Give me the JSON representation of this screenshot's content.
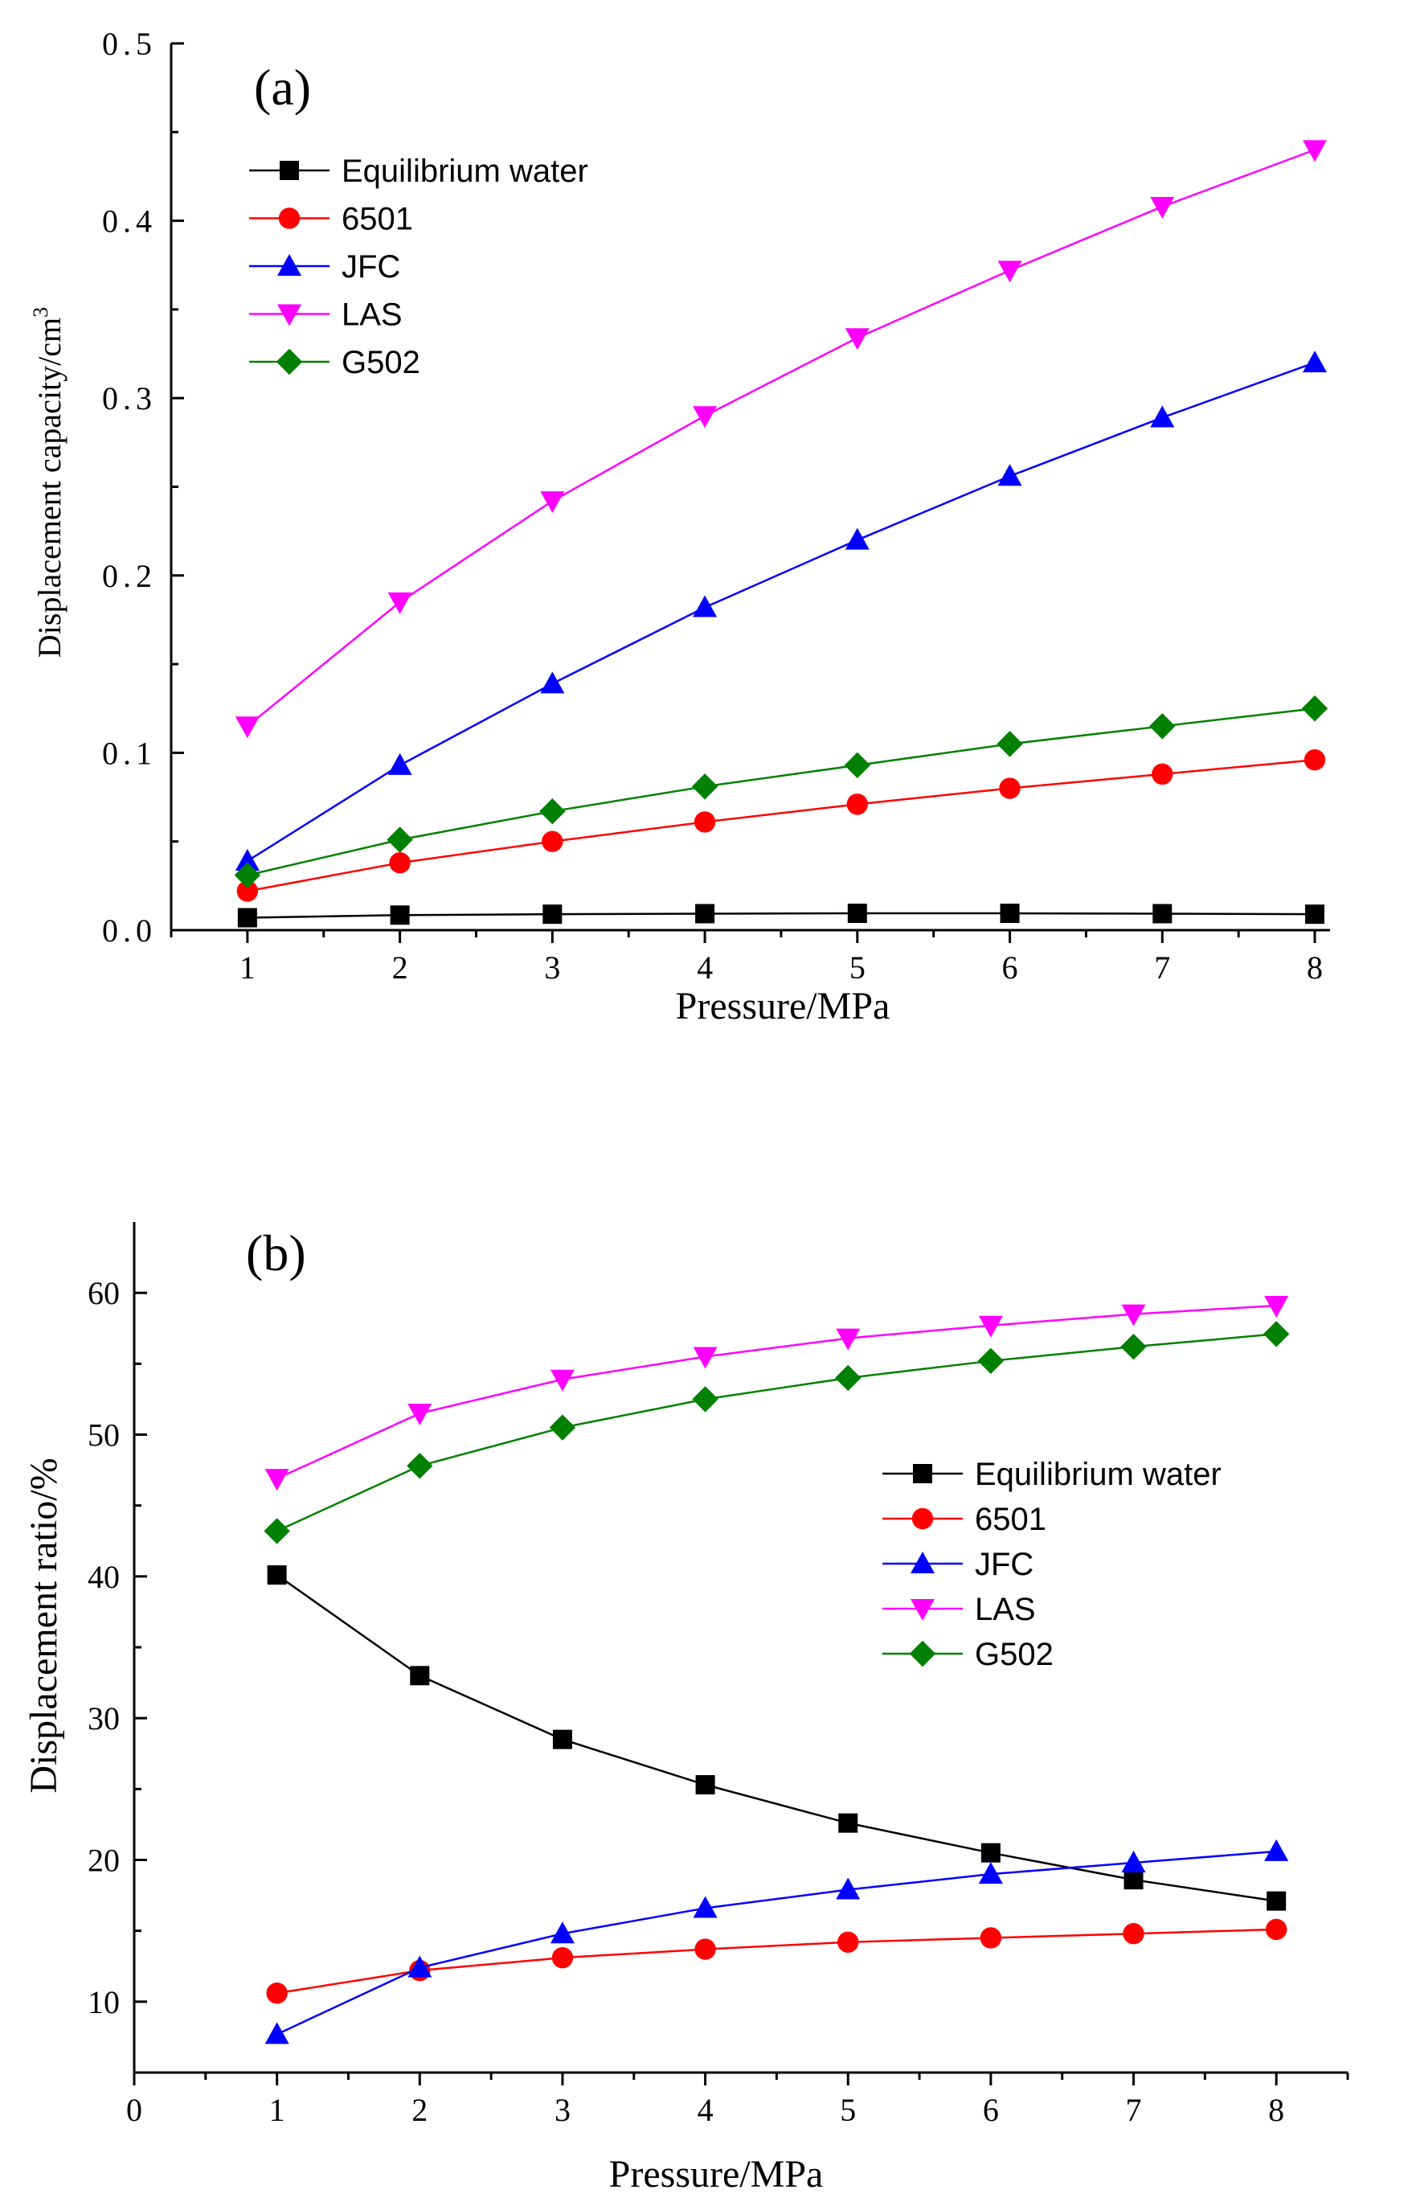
{
  "chart_data": [
    {
      "type": "line",
      "panel_label": "(a)",
      "xlabel": "Pressure/MPa",
      "ylabel": "Displacement capacity/cm",
      "ylabel_sup": "3",
      "xlim": [
        0.5,
        8.1
      ],
      "ylim": [
        0,
        0.5
      ],
      "x_ticks": [
        1,
        2,
        3,
        4,
        5,
        6,
        7,
        8
      ],
      "y_ticks": [
        0.0,
        0.1,
        0.2,
        0.3,
        0.4,
        0.5
      ],
      "y_tick_labels": [
        "0.0",
        "0.1",
        "0.2",
        "0.3",
        "0.4",
        "0.5"
      ],
      "legend_position": "top-left",
      "x": [
        1,
        2,
        3,
        4,
        5,
        6,
        7,
        8
      ],
      "series": [
        {
          "name": "Equilibrium water",
          "color": "#000000",
          "marker": "square",
          "values": [
            0.007,
            0.0085,
            0.009,
            0.0093,
            0.0095,
            0.0095,
            0.0093,
            0.009
          ]
        },
        {
          "name": "6501",
          "color": "#ff0000",
          "marker": "circle",
          "values": [
            0.022,
            0.038,
            0.05,
            0.061,
            0.071,
            0.08,
            0.088,
            0.096
          ]
        },
        {
          "name": "JFC",
          "color": "#0000ff",
          "marker": "triangle-up",
          "values": [
            0.039,
            0.093,
            0.139,
            0.182,
            0.22,
            0.256,
            0.289,
            0.32
          ]
        },
        {
          "name": "LAS",
          "color": "#ff00ff",
          "marker": "triangle-down",
          "values": [
            0.115,
            0.185,
            0.242,
            0.29,
            0.334,
            0.372,
            0.408,
            0.44
          ]
        },
        {
          "name": "G502",
          "color": "#008000",
          "marker": "diamond",
          "values": [
            0.031,
            0.051,
            0.067,
            0.081,
            0.093,
            0.105,
            0.115,
            0.125
          ]
        }
      ]
    },
    {
      "type": "line",
      "panel_label": "(b)",
      "xlabel": "Pressure/MPa",
      "ylabel": "Displacement ratio/%",
      "xlim": [
        0,
        8.5
      ],
      "ylim": [
        5,
        65
      ],
      "x_ticks": [
        0,
        1,
        2,
        3,
        4,
        5,
        6,
        7,
        8
      ],
      "y_ticks": [
        10,
        20,
        30,
        40,
        50,
        60
      ],
      "legend_position": "middle-right",
      "x": [
        1,
        2,
        3,
        4,
        5,
        6,
        7,
        8
      ],
      "series": [
        {
          "name": "Equilibrium water",
          "color": "#000000",
          "marker": "square",
          "values": [
            40.1,
            33.0,
            28.5,
            25.3,
            22.6,
            20.5,
            18.6,
            17.1
          ]
        },
        {
          "name": "6501",
          "color": "#ff0000",
          "marker": "circle",
          "values": [
            10.6,
            12.2,
            13.1,
            13.7,
            14.2,
            14.5,
            14.8,
            15.1
          ]
        },
        {
          "name": "JFC",
          "color": "#0000ff",
          "marker": "triangle-up",
          "values": [
            7.7,
            12.4,
            14.8,
            16.6,
            17.9,
            19.0,
            19.8,
            20.6
          ]
        },
        {
          "name": "LAS",
          "color": "#ff00ff",
          "marker": "triangle-down",
          "values": [
            46.9,
            51.5,
            53.9,
            55.5,
            56.8,
            57.7,
            58.5,
            59.1
          ]
        },
        {
          "name": "G502",
          "color": "#008000",
          "marker": "diamond",
          "values": [
            43.2,
            47.8,
            50.5,
            52.5,
            54.0,
            55.2,
            56.2,
            57.1
          ]
        }
      ]
    }
  ]
}
